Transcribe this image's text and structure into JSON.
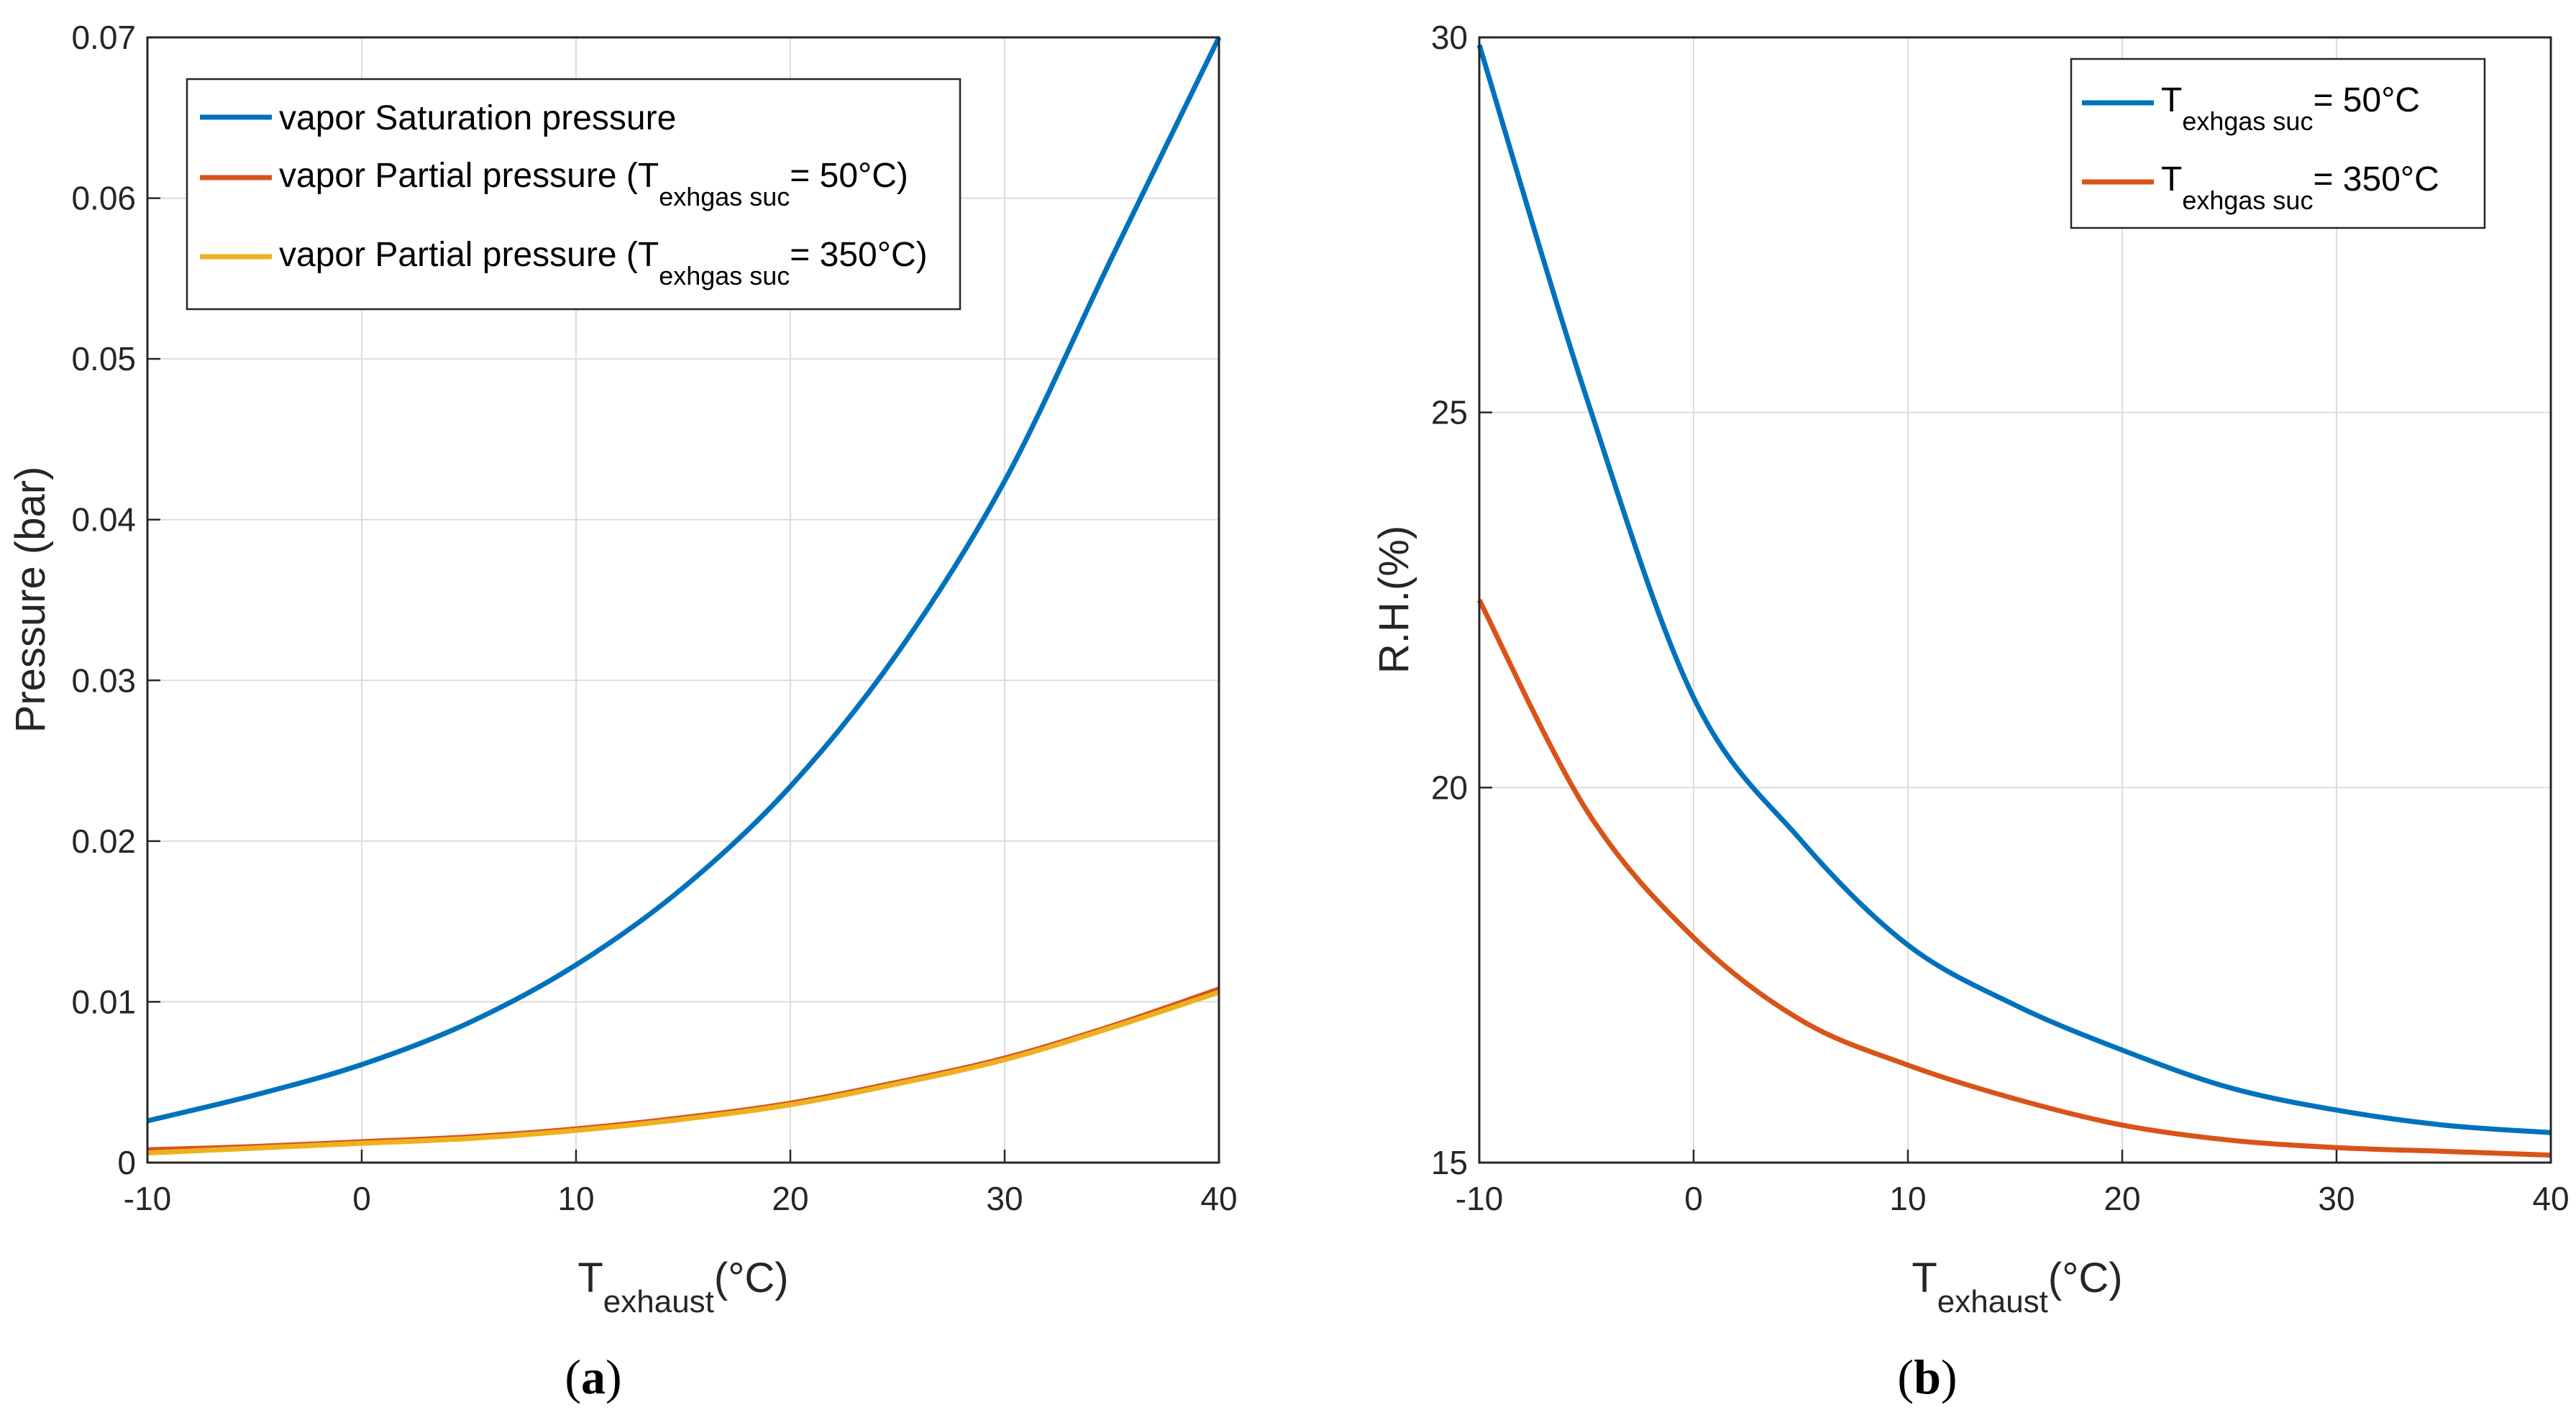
{
  "colors": {
    "blue": "#0072BD",
    "red": "#D95319",
    "yellow": "#EDB120",
    "grid": "#dcdcdc",
    "axis": "#262626"
  },
  "chart_data": [
    {
      "type": "line",
      "panel": "(a)",
      "panel_letter": "a",
      "xlabel_main": "T",
      "xlabel_sub": "exhaust",
      "xlabel_unit": "(°C)",
      "ylabel": "Pressure (bar)",
      "xlim": [
        -10,
        40
      ],
      "ylim": [
        0,
        0.07
      ],
      "xticks": [
        "-10",
        "0",
        "10",
        "20",
        "30",
        "40"
      ],
      "yticks": [
        "0",
        "0.01",
        "0.02",
        "0.03",
        "0.04",
        "0.05",
        "0.06",
        "0.07"
      ],
      "grid": true,
      "legend_position": "top-left",
      "x": [
        -10,
        -5,
        0,
        5,
        10,
        15,
        20,
        25,
        30,
        35,
        40
      ],
      "series": [
        {
          "name": "vapor Saturation pressure",
          "name_prefix": "vapor Saturation pressure",
          "name_sub": "",
          "name_suffix": "",
          "color": "#0072BD",
          "values": [
            0.0026,
            0.0042,
            0.0061,
            0.0087,
            0.0123,
            0.0171,
            0.0234,
            0.0317,
            0.0424,
            0.0563,
            0.07
          ]
        },
        {
          "name": "vapor Partial pressure (Texhgas suc= 50°C)",
          "name_prefix": "vapor Partial pressure (T",
          "name_sub": "exhgas suc",
          "name_suffix": "= 50°C)",
          "color": "#D95319",
          "values": [
            0.0008,
            0.001,
            0.0013,
            0.0016,
            0.0021,
            0.0028,
            0.0037,
            0.005,
            0.0065,
            0.0085,
            0.0108
          ]
        },
        {
          "name": "vapor Partial pressure (Texhgas suc= 350°C)",
          "name_prefix": "vapor Partial pressure (T",
          "name_sub": "exhgas suc",
          "name_suffix": "= 350°C)",
          "color": "#EDB120",
          "values": [
            0.0006,
            0.0009,
            0.0012,
            0.0015,
            0.002,
            0.0027,
            0.0036,
            0.0049,
            0.0064,
            0.0084,
            0.0106
          ]
        }
      ]
    },
    {
      "type": "line",
      "panel": "(b)",
      "panel_letter": "b",
      "xlabel_main": "T",
      "xlabel_sub": "exhaust",
      "xlabel_unit": "(°C)",
      "ylabel": "R.H.(%)",
      "xlim": [
        -10,
        40
      ],
      "ylim": [
        15,
        30
      ],
      "xticks": [
        "-10",
        "0",
        "10",
        "20",
        "30",
        "40"
      ],
      "yticks": [
        "15",
        "20",
        "25",
        "30"
      ],
      "grid": true,
      "legend_position": "top-right",
      "x": [
        -10,
        -5,
        0,
        5,
        10,
        15,
        20,
        25,
        30,
        35,
        40
      ],
      "series": [
        {
          "name": "Texhgas suc= 50°C",
          "name_prefix": "T",
          "name_sub": "exhgas suc",
          "name_suffix": "= 50°C",
          "color": "#0072BD",
          "values": [
            29.9,
            25.2,
            21.2,
            19.3,
            17.9,
            17.1,
            16.5,
            16.0,
            15.7,
            15.5,
            15.4
          ]
        },
        {
          "name": "Texhgas suc= 350°C",
          "name_prefix": "T",
          "name_sub": "exhgas suc",
          "name_suffix": "= 350°C",
          "color": "#D95319",
          "values": [
            22.5,
            19.7,
            18.0,
            16.9,
            16.3,
            15.85,
            15.5,
            15.3,
            15.2,
            15.15,
            15.1
          ]
        }
      ]
    }
  ]
}
